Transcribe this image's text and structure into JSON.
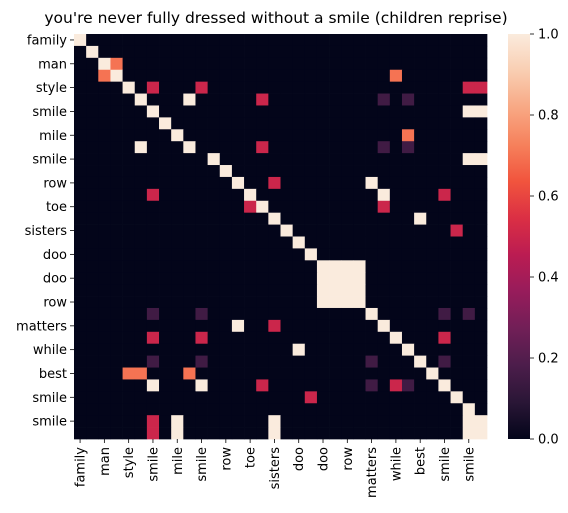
{
  "chart_data": {
    "type": "heatmap",
    "title": "you're never fully dressed without a smile (children reprise)",
    "xlabel": "",
    "ylabel": "",
    "tick_every": 2,
    "x_tick_labels": [
      "family",
      "man",
      "style",
      "smile",
      "mile",
      "smile",
      "row",
      "toe",
      "sisters",
      "doo",
      "doo",
      "row",
      "matters",
      "while",
      "best",
      "smile",
      "smile"
    ],
    "y_tick_labels": [
      "family",
      "man",
      "style",
      "smile",
      "mile",
      "smile",
      "row",
      "toe",
      "sisters",
      "doo",
      "doo",
      "row",
      "matters",
      "while",
      "best",
      "smile",
      "smile"
    ],
    "colormap": "rocket",
    "colormap_stops": [
      "#03051a",
      "#2a1636",
      "#4c1d4b",
      "#711f57",
      "#971c5b",
      "#bb1c52",
      "#db2f44",
      "#f1543d",
      "#f6815c",
      "#f8a884",
      "#f9ceb2",
      "#faebdd"
    ],
    "vmin": 0,
    "vmax": 1,
    "colorbar_ticks": [
      "0.0",
      "0.2",
      "0.4",
      "0.6",
      "0.8",
      "1.0"
    ],
    "colorbar_tick_values": [
      0,
      0.2,
      0.4,
      0.6,
      0.8,
      1.0
    ],
    "values": [
      [
        1,
        0,
        0,
        0,
        0,
        0,
        0,
        0,
        0,
        0,
        0,
        0,
        0,
        0,
        0,
        0,
        0,
        0,
        0,
        0,
        0,
        0,
        0,
        0,
        0,
        0,
        0,
        0,
        0,
        0,
        0,
        0,
        0,
        0
      ],
      [
        0,
        1,
        0,
        0,
        0,
        0,
        0,
        0,
        0,
        0,
        0,
        0,
        0,
        0,
        0,
        0,
        0,
        0,
        0,
        0,
        0,
        0,
        0,
        0,
        0,
        0,
        0,
        0,
        0,
        0,
        0,
        0,
        0,
        0
      ],
      [
        0,
        0,
        1,
        0.7,
        0,
        0,
        0,
        0,
        0,
        0,
        0,
        0,
        0,
        0,
        0,
        0,
        0,
        0,
        0,
        0,
        0,
        0,
        0,
        0,
        0,
        0,
        0,
        0,
        0,
        0,
        0,
        0,
        0,
        0
      ],
      [
        0,
        0,
        0.7,
        1,
        0,
        0,
        0,
        0,
        0,
        0,
        0,
        0,
        0,
        0,
        0,
        0,
        0,
        0,
        0,
        0,
        0,
        0,
        0,
        0,
        0,
        0,
        0.7,
        0,
        0,
        0,
        0,
        0,
        0,
        0
      ],
      [
        0,
        0,
        0,
        0,
        1,
        0,
        0.5,
        0,
        0,
        0,
        0.5,
        0,
        0,
        0,
        0,
        0,
        0,
        0,
        0,
        0,
        0,
        0,
        0,
        0,
        0,
        0,
        0,
        0,
        0,
        0,
        0,
        0,
        0.5,
        0.5
      ],
      [
        0,
        0,
        0,
        0,
        0,
        1,
        0,
        0,
        0,
        1,
        0,
        0,
        0,
        0,
        0,
        0.5,
        0,
        0,
        0,
        0,
        0,
        0,
        0,
        0,
        0,
        0.15,
        0,
        0.15,
        0,
        0,
        0,
        0,
        0,
        0
      ],
      [
        0,
        0,
        0,
        0,
        0,
        0,
        1,
        0,
        0,
        0,
        0,
        0,
        0,
        0,
        0,
        0,
        0,
        0,
        0,
        0,
        0,
        0,
        0,
        0,
        0,
        0,
        0,
        0,
        0,
        0,
        0,
        0,
        1,
        1
      ],
      [
        0,
        0,
        0,
        0,
        0,
        0,
        0,
        1,
        0,
        0,
        0,
        0,
        0,
        0,
        0,
        0,
        0,
        0,
        0,
        0,
        0,
        0,
        0,
        0,
        0,
        0,
        0,
        0,
        0,
        0,
        0,
        0,
        0,
        0
      ],
      [
        0,
        0,
        0,
        0,
        0,
        0,
        0,
        0,
        1,
        0,
        0,
        0,
        0,
        0,
        0,
        0,
        0,
        0,
        0,
        0,
        0,
        0,
        0,
        0,
        0,
        0,
        0,
        0.7,
        0,
        0,
        0,
        0,
        0,
        0
      ],
      [
        0,
        0,
        0,
        0,
        0,
        1,
        0,
        0,
        0,
        1,
        0,
        0,
        0,
        0,
        0,
        0.5,
        0,
        0,
        0,
        0,
        0,
        0,
        0,
        0,
        0,
        0.15,
        0,
        0.15,
        0,
        0,
        0,
        0,
        0,
        0
      ],
      [
        0,
        0,
        0,
        0,
        0,
        0,
        0,
        0,
        0,
        0,
        0,
        1,
        0,
        0,
        0,
        0,
        0,
        0,
        0,
        0,
        0,
        0,
        0,
        0,
        0,
        0,
        0,
        0,
        0,
        0,
        0,
        0,
        1,
        1
      ],
      [
        0,
        0,
        0,
        0,
        0,
        0,
        0,
        0,
        0,
        0,
        0,
        0,
        1,
        0,
        0,
        0,
        0,
        0,
        0,
        0,
        0,
        0,
        0,
        0,
        0,
        0,
        0,
        0,
        0,
        0,
        0,
        0,
        0,
        0
      ],
      [
        0,
        0,
        0,
        0,
        0,
        0,
        0,
        0,
        0,
        0,
        0,
        0,
        0,
        1,
        0,
        0,
        0.5,
        0,
        0,
        0,
        0,
        0,
        0,
        0,
        1,
        0,
        0,
        0,
        0,
        0,
        0,
        0,
        0,
        0
      ],
      [
        0,
        0,
        0,
        0,
        0,
        0,
        0.5,
        0,
        0,
        0,
        0,
        0,
        0,
        0,
        1,
        0,
        0,
        0,
        0,
        0,
        0,
        0,
        0,
        0,
        0,
        1,
        0,
        0,
        0,
        0,
        0.5,
        0,
        0,
        0
      ],
      [
        0,
        0,
        0,
        0,
        0,
        0,
        0,
        0,
        0,
        0,
        0,
        0,
        0,
        0,
        0.5,
        1,
        0,
        0,
        0,
        0,
        0,
        0,
        0,
        0,
        0,
        0.5,
        0,
        0,
        0,
        0,
        0,
        0,
        0,
        0
      ],
      [
        0,
        0,
        0,
        0,
        0,
        0,
        0,
        0,
        0,
        0,
        0,
        0,
        0,
        0,
        0,
        0,
        1,
        0,
        0,
        0,
        0,
        0,
        0,
        0,
        0,
        0,
        0,
        0,
        1,
        0,
        0,
        0,
        0,
        0
      ],
      [
        0,
        0,
        0,
        0,
        0,
        0,
        0,
        0,
        0,
        0,
        0,
        0,
        0,
        0,
        0,
        0,
        0,
        1,
        0,
        0,
        0,
        0,
        0,
        0,
        0,
        0,
        0,
        0,
        0,
        0,
        0,
        0.5,
        0,
        0
      ],
      [
        0,
        0,
        0,
        0,
        0,
        0,
        0,
        0,
        0,
        0,
        0,
        0,
        0,
        0,
        0,
        0,
        0,
        0,
        1,
        0,
        0,
        0,
        0,
        0,
        0,
        0,
        0,
        0,
        0,
        0,
        0,
        0,
        0,
        0
      ],
      [
        0,
        0,
        0,
        0,
        0,
        0,
        0,
        0,
        0,
        0,
        0,
        0,
        0,
        0,
        0,
        0,
        0,
        0,
        0,
        1,
        0,
        0,
        0,
        0,
        0,
        0,
        0,
        0,
        0,
        0,
        0,
        0,
        0,
        0
      ],
      [
        0,
        0,
        0,
        0,
        0,
        0,
        0,
        0,
        0,
        0,
        0,
        0,
        0,
        0,
        0,
        0,
        0,
        0,
        0,
        0,
        1,
        1,
        1,
        1,
        0,
        0,
        0,
        0,
        0,
        0,
        0,
        0,
        0,
        0
      ],
      [
        0,
        0,
        0,
        0,
        0,
        0,
        0,
        0,
        0,
        0,
        0,
        0,
        0,
        0,
        0,
        0,
        0,
        0,
        0,
        0,
        1,
        1,
        1,
        1,
        0,
        0,
        0,
        0,
        0,
        0,
        0,
        0,
        0,
        0
      ],
      [
        0,
        0,
        0,
        0,
        0,
        0,
        0,
        0,
        0,
        0,
        0,
        0,
        0,
        0,
        0,
        0,
        0,
        0,
        0,
        0,
        1,
        1,
        1,
        1,
        0,
        0,
        0,
        0,
        0,
        0,
        0,
        0,
        0,
        0
      ],
      [
        0,
        0,
        0,
        0,
        0,
        0,
        0,
        0,
        0,
        0,
        0,
        0,
        0,
        0,
        0,
        0,
        0,
        0,
        0,
        0,
        1,
        1,
        1,
        1,
        0,
        0,
        0,
        0,
        0,
        0,
        0,
        0,
        0,
        0
      ],
      [
        0,
        0,
        0,
        0,
        0,
        0,
        0.15,
        0,
        0,
        0,
        0.15,
        0,
        0,
        0,
        0,
        0,
        0,
        0,
        0,
        0,
        0,
        0,
        0,
        0,
        1,
        0,
        0,
        0,
        0,
        0,
        0.15,
        0,
        0.15,
        0
      ],
      [
        0,
        0,
        0,
        0,
        0,
        0,
        0,
        0,
        0,
        0,
        0,
        0,
        0,
        1,
        0,
        0,
        0.5,
        0,
        0,
        0,
        0,
        0,
        0,
        0,
        0,
        1,
        0,
        0,
        0,
        0,
        0,
        0,
        0,
        0
      ],
      [
        0,
        0,
        0,
        0,
        0,
        0,
        0.5,
        0,
        0,
        0,
        0.5,
        0,
        0,
        0,
        0,
        0,
        0,
        0,
        0,
        0,
        0,
        0,
        0,
        0,
        0,
        0,
        1,
        0,
        0,
        0,
        0.5,
        0,
        0,
        0
      ],
      [
        0,
        0,
        0,
        0,
        0,
        0,
        0,
        0,
        0,
        0,
        0,
        0,
        0,
        0,
        0,
        0,
        0,
        0,
        1,
        0,
        0,
        0,
        0,
        0,
        0,
        0,
        0,
        1,
        0,
        0,
        0,
        0,
        0,
        0
      ],
      [
        0,
        0,
        0,
        0,
        0,
        0,
        0.15,
        0,
        0,
        0,
        0.15,
        0,
        0,
        0,
        0,
        0,
        0,
        0,
        0,
        0,
        0,
        0,
        0,
        0,
        0.15,
        0,
        0,
        0,
        1,
        0,
        0.15,
        0,
        0,
        0
      ],
      [
        0,
        0,
        0,
        0,
        0.7,
        0.7,
        0,
        0,
        0,
        0.7,
        0,
        0,
        0,
        0,
        0,
        0,
        0,
        0,
        0,
        0,
        0,
        0,
        0,
        0,
        0,
        0,
        0,
        0,
        0,
        1,
        0,
        0,
        0,
        0
      ],
      [
        0,
        0,
        0,
        0,
        0,
        0,
        1,
        0,
        0,
        0,
        1,
        0,
        0,
        0,
        0,
        0.5,
        0,
        0,
        0,
        0,
        0,
        0,
        0,
        0,
        0.15,
        0,
        0.5,
        0.15,
        0,
        0,
        1,
        0,
        0,
        0
      ],
      [
        0,
        0,
        0,
        0,
        0,
        0,
        0,
        0,
        0,
        0,
        0,
        0,
        0,
        0,
        0,
        0,
        0,
        0,
        0,
        0.5,
        0,
        0,
        0,
        0,
        0,
        0,
        0,
        0,
        0,
        0,
        0,
        1,
        0,
        0
      ],
      [
        0,
        0,
        0,
        0,
        0,
        0,
        0,
        0,
        0,
        0,
        0,
        0,
        0,
        0,
        0,
        0,
        0,
        0,
        0,
        0,
        0,
        0,
        0,
        0,
        0,
        0,
        0,
        0,
        0,
        0,
        0,
        0,
        1,
        0
      ],
      [
        0,
        0,
        0,
        0,
        0,
        0,
        0.5,
        0,
        1,
        0,
        0,
        0,
        0,
        0,
        0,
        0,
        1,
        0,
        0,
        0,
        0,
        0,
        0,
        0,
        0,
        0,
        0,
        0,
        0,
        0,
        0,
        0,
        1,
        1
      ],
      [
        0,
        0,
        0,
        0,
        0,
        0,
        0.5,
        0,
        1,
        0,
        0,
        0,
        0,
        0,
        0,
        0,
        1,
        0,
        0,
        0,
        0,
        0,
        0,
        0,
        0,
        0,
        0,
        0,
        0,
        0,
        0,
        0,
        1,
        1
      ]
    ]
  }
}
